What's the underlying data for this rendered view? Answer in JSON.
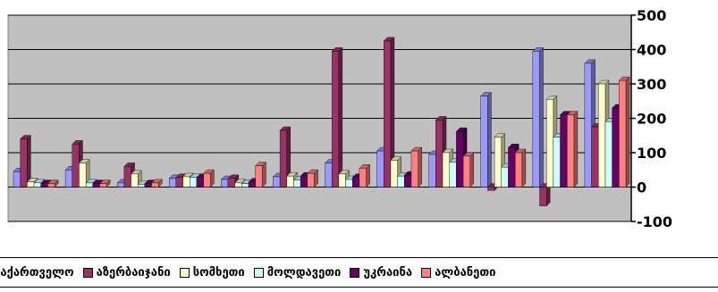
{
  "chart_data": {
    "type": "bar",
    "y_ticks": [
      "500",
      "400",
      "300",
      "200",
      "100",
      "0",
      "-100"
    ],
    "ylim": [
      -100,
      500
    ],
    "grid": true,
    "legend_position": "bottom",
    "categories_count": 12,
    "series": [
      {
        "name": "საქართველო",
        "color": "#9999ff",
        "values": [
          45,
          50,
          12,
          25,
          22,
          30,
          70,
          105,
          95,
          265,
          395,
          360
        ]
      },
      {
        "name": "აზერბაიჯანი",
        "color": "#993366",
        "values": [
          140,
          125,
          60,
          28,
          25,
          165,
          395,
          425,
          195,
          -10,
          -55,
          175
        ]
      },
      {
        "name": "სომხეთი",
        "color": "#ffffcc",
        "values": [
          15,
          70,
          38,
          30,
          12,
          32,
          38,
          78,
          100,
          145,
          255,
          300
        ]
      },
      {
        "name": "მოლდავეთი",
        "color": "#ccffff",
        "values": [
          12,
          12,
          8,
          28,
          10,
          20,
          22,
          32,
          72,
          58,
          145,
          190
        ]
      },
      {
        "name": "უკრაინა",
        "color": "#660066",
        "values": [
          10,
          10,
          10,
          28,
          15,
          32,
          28,
          35,
          162,
          115,
          210,
          230
        ]
      },
      {
        "name": "ალბანეთი",
        "color": "#ff8080",
        "values": [
          10,
          10,
          12,
          40,
          62,
          40,
          55,
          105,
          90,
          100,
          210,
          310
        ]
      }
    ]
  },
  "legend": {
    "items": [
      {
        "label": "საქართველო",
        "color": "#9999ff"
      },
      {
        "label": "აზერბაიჯანი",
        "color": "#993366"
      },
      {
        "label": "სომხეთი",
        "color": "#ffffcc"
      },
      {
        "label": "მოლდავეთი",
        "color": "#ccffff"
      },
      {
        "label": "უკრაინა",
        "color": "#660066"
      },
      {
        "label": "ალბანეთი",
        "color": "#ff8080"
      }
    ]
  }
}
